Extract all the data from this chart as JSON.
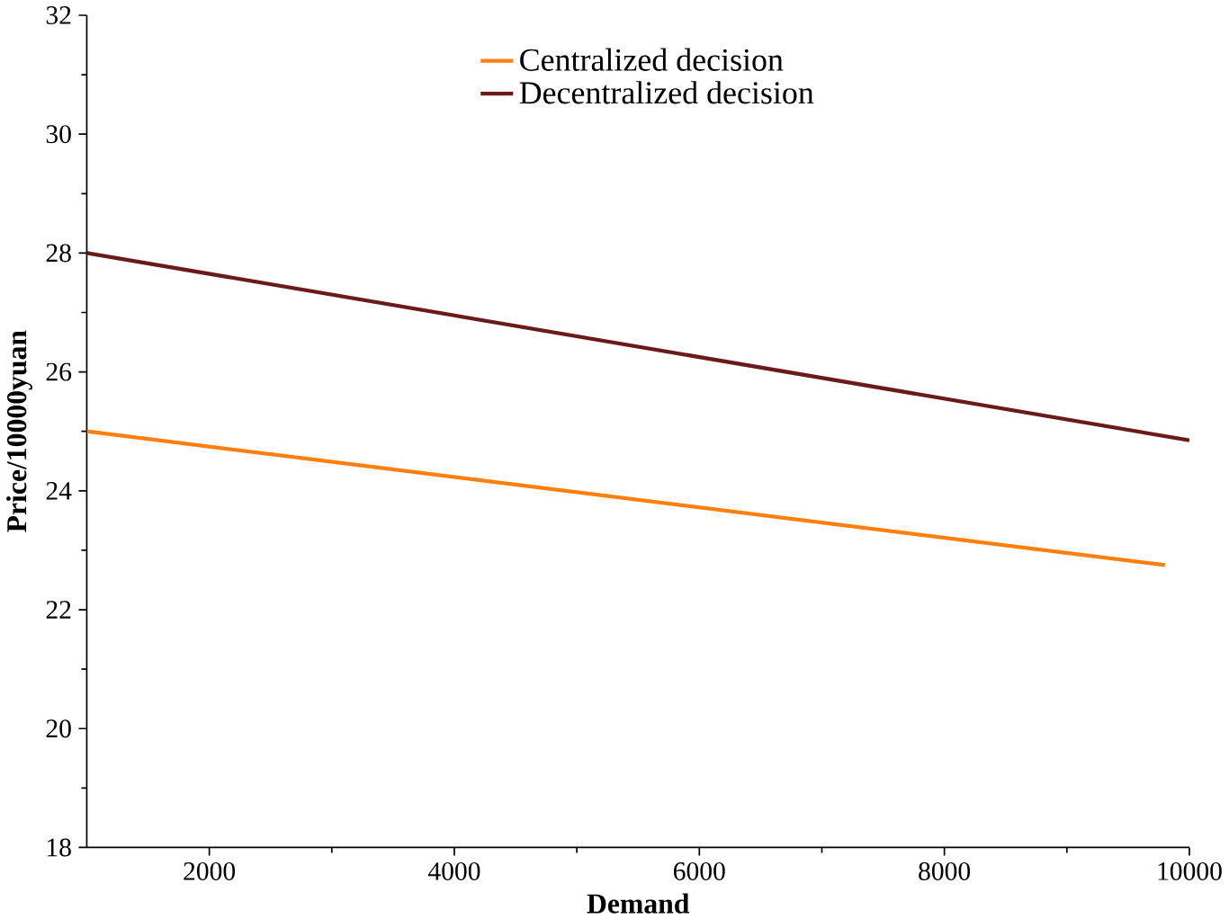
{
  "chart_data": {
    "type": "line",
    "xlabel": "Demand",
    "ylabel": "Price/10000yuan",
    "xlim": [
      1000,
      10000
    ],
    "ylim": [
      18,
      32
    ],
    "xticks": [
      2000,
      4000,
      6000,
      8000,
      10000
    ],
    "yticks": [
      18,
      20,
      22,
      24,
      26,
      28,
      30,
      32
    ],
    "legend": "top right",
    "grid": false,
    "marker": "none",
    "line_style": "solid",
    "series": [
      {
        "name": "Centralized decision",
        "color": "#ff7f0e",
        "x": [
          1000,
          9800
        ],
        "values": [
          25,
          22.75
        ]
      },
      {
        "name": "Decentralized decision",
        "color": "#6b1a1a",
        "x": [
          1000,
          10000
        ],
        "values": [
          28,
          24.85
        ]
      }
    ]
  }
}
